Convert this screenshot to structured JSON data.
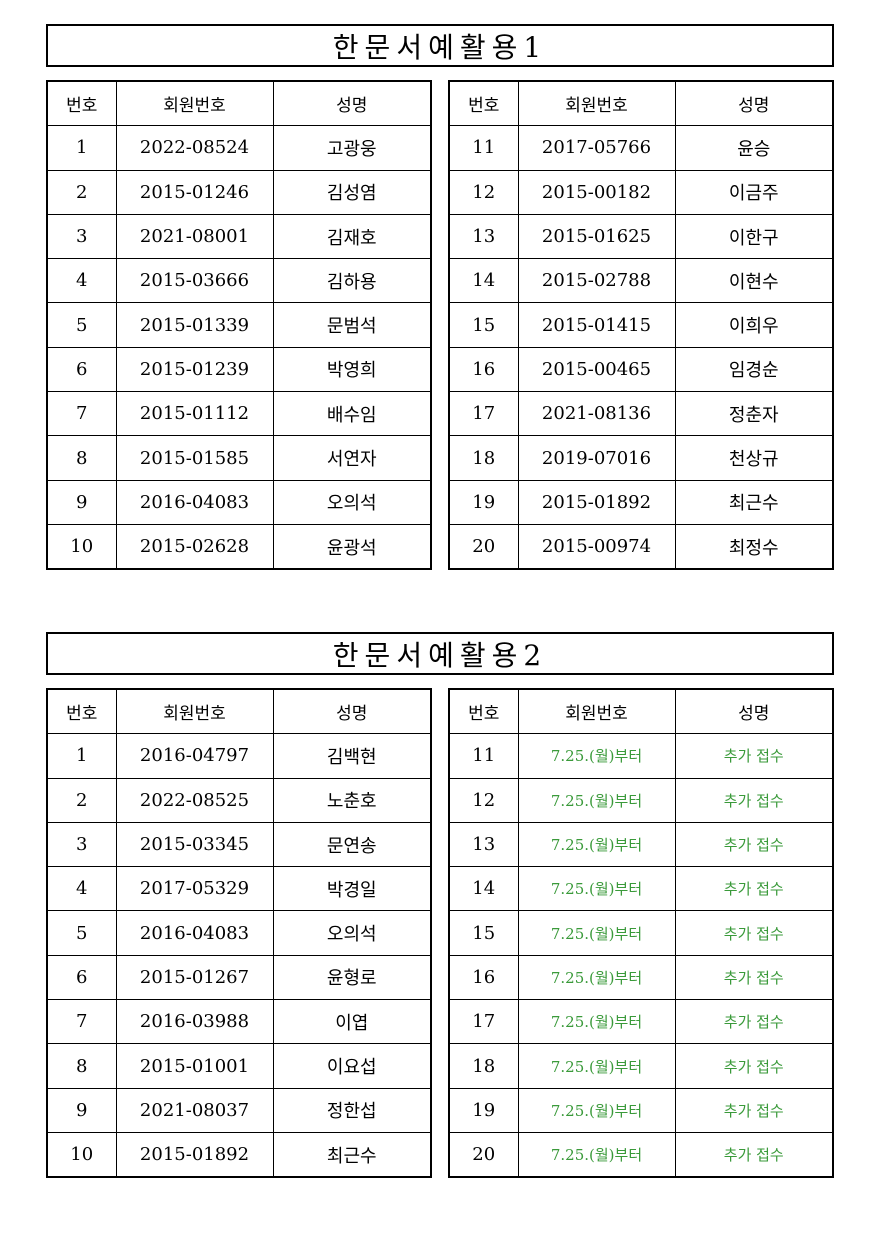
{
  "headers": {
    "no": "번호",
    "member_id": "회원번호",
    "name": "성명"
  },
  "sections": [
    {
      "title": "한문서예활용1",
      "left": [
        {
          "no": "1",
          "member_id": "2022-08524",
          "name": "고광웅"
        },
        {
          "no": "2",
          "member_id": "2015-01246",
          "name": "김성염"
        },
        {
          "no": "3",
          "member_id": "2021-08001",
          "name": "김재호"
        },
        {
          "no": "4",
          "member_id": "2015-03666",
          "name": "김하용"
        },
        {
          "no": "5",
          "member_id": "2015-01339",
          "name": "문범석"
        },
        {
          "no": "6",
          "member_id": "2015-01239",
          "name": "박영희"
        },
        {
          "no": "7",
          "member_id": "2015-01112",
          "name": "배수임"
        },
        {
          "no": "8",
          "member_id": "2015-01585",
          "name": "서연자"
        },
        {
          "no": "9",
          "member_id": "2016-04083",
          "name": "오의석"
        },
        {
          "no": "10",
          "member_id": "2015-02628",
          "name": "윤광석"
        }
      ],
      "right": [
        {
          "no": "11",
          "member_id": "2017-05766",
          "name": "윤승"
        },
        {
          "no": "12",
          "member_id": "2015-00182",
          "name": "이금주"
        },
        {
          "no": "13",
          "member_id": "2015-01625",
          "name": "이한구"
        },
        {
          "no": "14",
          "member_id": "2015-02788",
          "name": "이현수"
        },
        {
          "no": "15",
          "member_id": "2015-01415",
          "name": "이희우"
        },
        {
          "no": "16",
          "member_id": "2015-00465",
          "name": "임경순"
        },
        {
          "no": "17",
          "member_id": "2021-08136",
          "name": "정춘자"
        },
        {
          "no": "18",
          "member_id": "2019-07016",
          "name": "천상규"
        },
        {
          "no": "19",
          "member_id": "2015-01892",
          "name": "최근수"
        },
        {
          "no": "20",
          "member_id": "2015-00974",
          "name": "최정수"
        }
      ]
    },
    {
      "title": "한문서예활용2",
      "left": [
        {
          "no": "1",
          "member_id": "2016-04797",
          "name": "김백현"
        },
        {
          "no": "2",
          "member_id": "2022-08525",
          "name": "노춘호"
        },
        {
          "no": "3",
          "member_id": "2015-03345",
          "name": "문연송"
        },
        {
          "no": "4",
          "member_id": "2017-05329",
          "name": "박경일"
        },
        {
          "no": "5",
          "member_id": "2016-04083",
          "name": "오의석"
        },
        {
          "no": "6",
          "member_id": "2015-01267",
          "name": "윤형로"
        },
        {
          "no": "7",
          "member_id": "2016-03988",
          "name": "이엽"
        },
        {
          "no": "8",
          "member_id": "2015-01001",
          "name": "이요섭"
        },
        {
          "no": "9",
          "member_id": "2021-08037",
          "name": "정한섭"
        },
        {
          "no": "10",
          "member_id": "2015-01892",
          "name": "최근수"
        }
      ],
      "right": [
        {
          "no": "11",
          "member_id": "7.25.(월)부터",
          "name": "추가 접수"
        },
        {
          "no": "12",
          "member_id": "7.25.(월)부터",
          "name": "추가 접수"
        },
        {
          "no": "13",
          "member_id": "7.25.(월)부터",
          "name": "추가 접수"
        },
        {
          "no": "14",
          "member_id": "7.25.(월)부터",
          "name": "추가 접수"
        },
        {
          "no": "15",
          "member_id": "7.25.(월)부터",
          "name": "추가 접수"
        },
        {
          "no": "16",
          "member_id": "7.25.(월)부터",
          "name": "추가 접수"
        },
        {
          "no": "17",
          "member_id": "7.25.(월)부터",
          "name": "추가 접수"
        },
        {
          "no": "18",
          "member_id": "7.25.(월)부터",
          "name": "추가 접수"
        },
        {
          "no": "19",
          "member_id": "7.25.(월)부터",
          "name": "추가 접수"
        },
        {
          "no": "20",
          "member_id": "7.25.(월)부터",
          "name": "추가 접수"
        }
      ],
      "right_text_color": "#3a9a3a"
    }
  ]
}
